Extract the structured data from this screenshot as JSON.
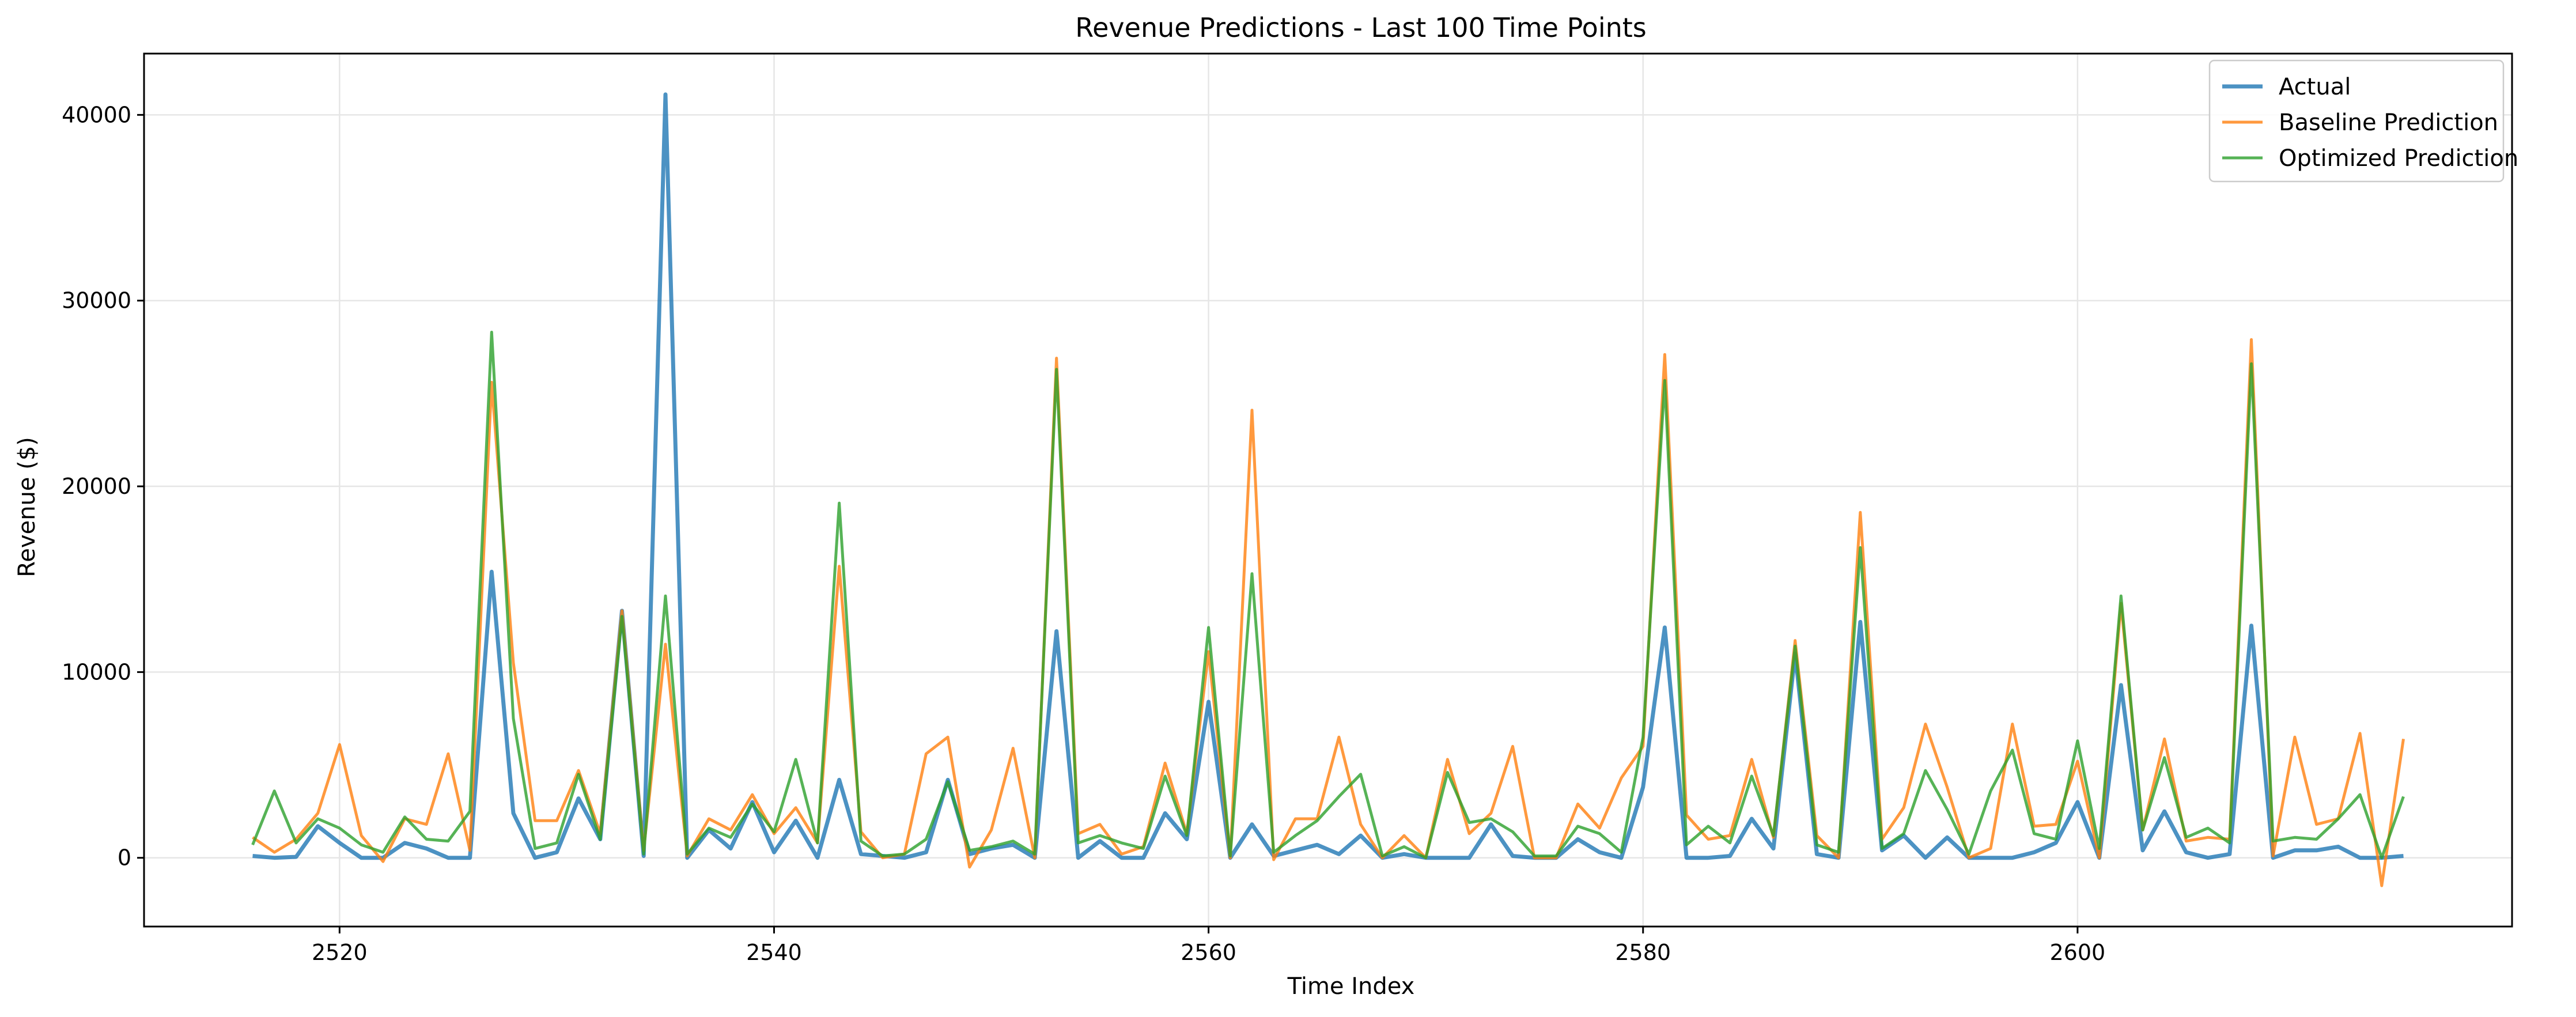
{
  "chart_data": {
    "type": "line",
    "title": "Revenue Predictions - Last 100 Time Points",
    "xlabel": "Time Index",
    "ylabel": "Revenue ($)",
    "xlim": [
      2511,
      2519.5
    ],
    "xlim_full": [
      2511.0,
      2620.0
    ],
    "ylim": [
      -3700,
      43300
    ],
    "x_ticks": [
      2520,
      2540,
      2560,
      2580,
      2600
    ],
    "y_ticks": [
      0,
      10000,
      20000,
      30000,
      40000
    ],
    "grid": true,
    "legend_position": "top-right",
    "x_start": 2516,
    "series": [
      {
        "name": "Actual",
        "color": "#1f77b4",
        "values": [
          100,
          0,
          50,
          1700,
          800,
          0,
          0,
          800,
          500,
          0,
          0,
          15400,
          2400,
          0,
          300,
          3200,
          1000,
          13300,
          100,
          41100,
          0,
          1500,
          500,
          3000,
          300,
          2000,
          0,
          4200,
          200,
          100,
          0,
          300,
          4200,
          200,
          500,
          700,
          0,
          12200,
          0,
          900,
          0,
          0,
          2400,
          1000,
          8400,
          0,
          1800,
          100,
          400,
          700,
          200,
          1200,
          0,
          200,
          0,
          0,
          0,
          1800,
          100,
          0,
          0,
          1000,
          300,
          0,
          3800,
          12400,
          0,
          0,
          100,
          2100,
          500,
          11000,
          200,
          0,
          12700,
          400,
          1200,
          0,
          1100,
          0,
          0,
          0,
          300,
          800,
          3000,
          0,
          9300,
          400,
          2500,
          300,
          0,
          200,
          12500,
          0,
          400,
          400,
          600,
          0,
          0,
          100
        ]
      },
      {
        "name": "Baseline Prediction",
        "color": "#ff7f0e",
        "values": [
          1100,
          300,
          1000,
          2400,
          6100,
          1200,
          -200,
          2100,
          1800,
          5600,
          400,
          25600,
          10500,
          2000,
          2000,
          4700,
          1300,
          13300,
          400,
          11500,
          100,
          2100,
          1500,
          3400,
          1300,
          2700,
          800,
          15700,
          1400,
          0,
          200,
          5600,
          6500,
          -500,
          1500,
          5900,
          0,
          26900,
          1300,
          1800,
          200,
          600,
          5100,
          1300,
          11100,
          0,
          24100,
          -100,
          2100,
          2100,
          6500,
          1800,
          0,
          1200,
          0,
          5300,
          1300,
          2400,
          6000,
          0,
          0,
          2900,
          1600,
          4300,
          6000,
          27100,
          2300,
          1000,
          1200,
          5300,
          1100,
          11700,
          1200,
          0,
          18600,
          1000,
          2700,
          7200,
          3800,
          0,
          500,
          7200,
          1700,
          1800,
          5200,
          0,
          13700,
          1500,
          6400,
          900,
          1100,
          1000,
          27900,
          100,
          6500,
          1800,
          2100,
          6700,
          -1500,
          6400
        ]
      },
      {
        "name": "Optimized Prediction",
        "color": "#2ca02c",
        "values": [
          700,
          3600,
          800,
          2100,
          1600,
          700,
          300,
          2200,
          1000,
          900,
          2500,
          28300,
          7500,
          500,
          800,
          4500,
          1000,
          13000,
          200,
          14100,
          200,
          1600,
          1100,
          2900,
          1400,
          5300,
          800,
          19100,
          900,
          100,
          200,
          1000,
          4100,
          400,
          600,
          900,
          200,
          26300,
          800,
          1200,
          800,
          500,
          4400,
          1200,
          12400,
          100,
          15300,
          300,
          1200,
          2000,
          3300,
          4500,
          100,
          600,
          0,
          4600,
          1900,
          2100,
          1400,
          100,
          100,
          1700,
          1300,
          300,
          6500,
          25700,
          700,
          1700,
          800,
          4400,
          1200,
          11400,
          700,
          300,
          16700,
          500,
          1300,
          4700,
          2600,
          200,
          3600,
          5800,
          1300,
          1000,
          6300,
          500,
          14100,
          1500,
          5400,
          1100,
          1600,
          800,
          26600,
          900,
          1100,
          1000,
          2100,
          3400,
          0,
          3300
        ]
      }
    ]
  }
}
